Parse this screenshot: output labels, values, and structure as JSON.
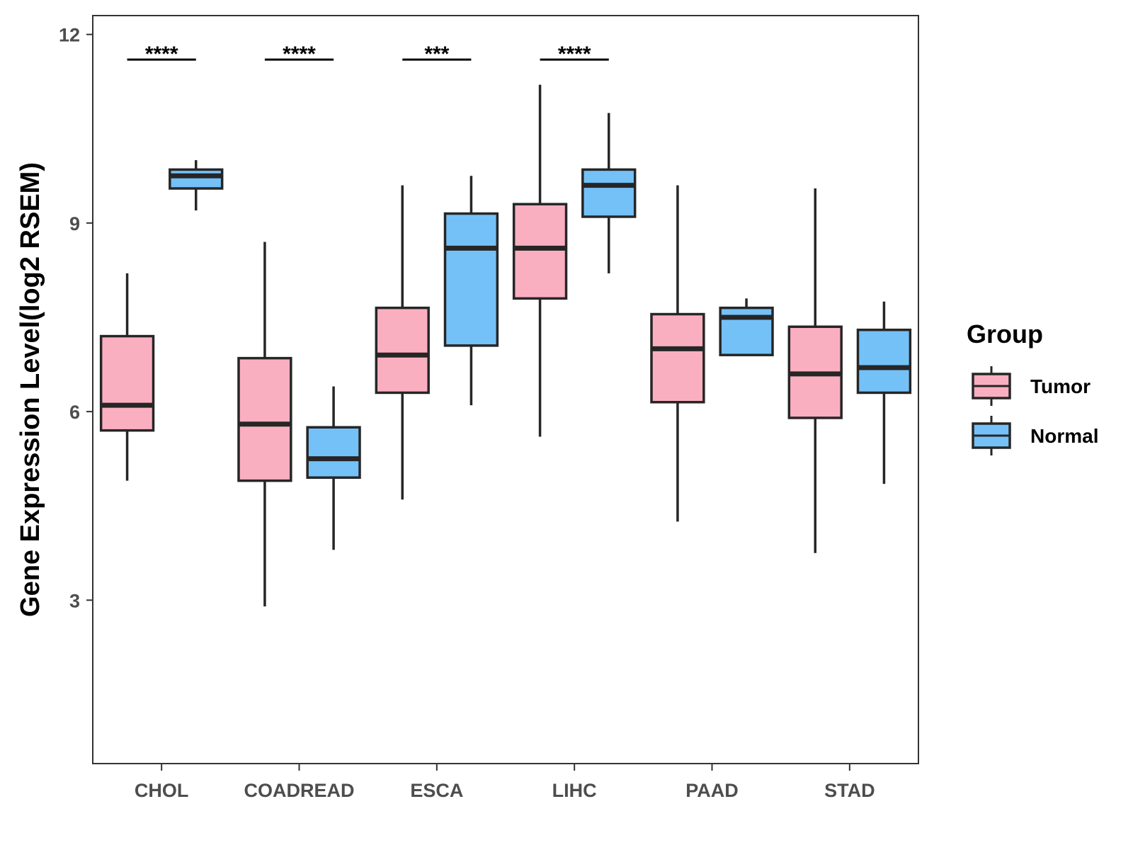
{
  "chart_data": {
    "type": "boxplot",
    "ylabel": "Gene Expression Level(log2 RSEM)",
    "xlabel": "",
    "ylim": [
      0.4,
      12.3
    ],
    "yticks": [
      3,
      6,
      9,
      12
    ],
    "categories": [
      "CHOL",
      "COADREAD",
      "ESCA",
      "LIHC",
      "PAAD",
      "STAD"
    ],
    "series": [
      {
        "name": "Tumor",
        "color": "#FAAFC1",
        "boxes": [
          {
            "whisker_low": 4.9,
            "q1": 5.7,
            "median": 6.1,
            "q3": 7.2,
            "whisker_high": 8.2
          },
          {
            "whisker_low": 2.9,
            "q1": 4.9,
            "median": 5.8,
            "q3": 6.85,
            "whisker_high": 8.7
          },
          {
            "whisker_low": 4.6,
            "q1": 6.3,
            "median": 6.9,
            "q3": 7.65,
            "whisker_high": 9.6
          },
          {
            "whisker_low": 5.6,
            "q1": 7.8,
            "median": 8.6,
            "q3": 9.3,
            "whisker_high": 11.2
          },
          {
            "whisker_low": 4.25,
            "q1": 6.15,
            "median": 7.0,
            "q3": 7.55,
            "whisker_high": 9.6
          },
          {
            "whisker_low": 3.75,
            "q1": 5.9,
            "median": 6.6,
            "q3": 7.35,
            "whisker_high": 9.55
          }
        ]
      },
      {
        "name": "Normal",
        "color": "#74C1F8",
        "boxes": [
          {
            "whisker_low": 9.2,
            "q1": 9.55,
            "median": 9.75,
            "q3": 9.85,
            "whisker_high": 10.0
          },
          {
            "whisker_low": 3.8,
            "q1": 4.95,
            "median": 5.25,
            "q3": 5.75,
            "whisker_high": 6.4
          },
          {
            "whisker_low": 6.1,
            "q1": 7.05,
            "median": 8.6,
            "q3": 9.15,
            "whisker_high": 9.75
          },
          {
            "whisker_low": 8.2,
            "q1": 9.1,
            "median": 9.6,
            "q3": 9.85,
            "whisker_high": 10.75
          },
          {
            "whisker_low": 6.9,
            "q1": 6.9,
            "median": 7.5,
            "q3": 7.65,
            "whisker_high": 7.8
          },
          {
            "whisker_low": 4.85,
            "q1": 6.3,
            "median": 6.7,
            "q3": 7.3,
            "whisker_high": 7.75
          }
        ]
      }
    ],
    "significance": [
      {
        "category": "CHOL",
        "label": "****"
      },
      {
        "category": "COADREAD",
        "label": "****"
      },
      {
        "category": "ESCA",
        "label": "***"
      },
      {
        "category": "LIHC",
        "label": "****"
      }
    ],
    "significance_y": 11.6,
    "legend": {
      "title": "Group",
      "position": "right",
      "items": [
        "Tumor",
        "Normal"
      ]
    }
  }
}
